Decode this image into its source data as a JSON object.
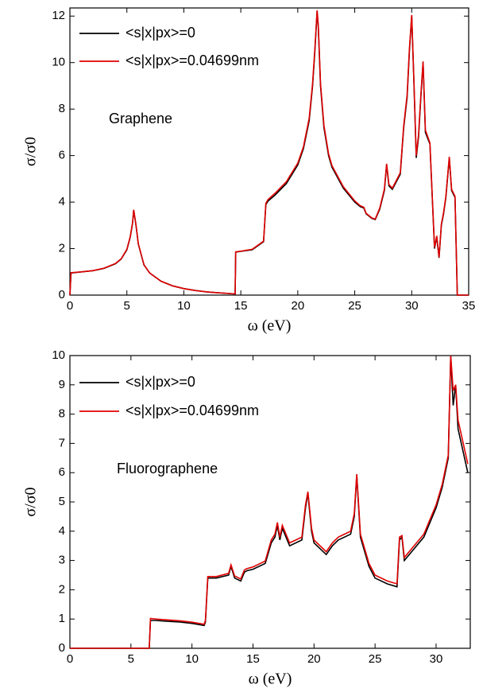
{
  "chart_data": [
    {
      "type": "line",
      "annotation": "Graphene",
      "xlabel": "ω (eV)",
      "ylabel": "σ/σ0",
      "xlim": [
        0,
        35
      ],
      "ylim": [
        0,
        12.35
      ],
      "xticks": [
        0,
        5,
        10,
        15,
        20,
        25,
        30,
        35
      ],
      "yticks": [
        0,
        2,
        4,
        6,
        8,
        10,
        12
      ],
      "legend": "upper left",
      "x": [
        0,
        0.1,
        1,
        2,
        3,
        4,
        4.5,
        5,
        5.3,
        5.5,
        5.6,
        5.8,
        6,
        6.5,
        7,
        8,
        9,
        10,
        11,
        12,
        13,
        14,
        14.5,
        14.55,
        15,
        16,
        17,
        17.2,
        17.4,
        18,
        19,
        20,
        20.5,
        21,
        21.3,
        21.5,
        21.7,
        21.8,
        22,
        22.3,
        22.7,
        23,
        24,
        25,
        25.5,
        25.8,
        26,
        26.5,
        26.8,
        27.2,
        27.6,
        27.8,
        28,
        28.3,
        29,
        29.3,
        29.6,
        29.8,
        30,
        30.2,
        30.4,
        30.6,
        30.8,
        31,
        31.2,
        31.6,
        32,
        32.2,
        32.4,
        32.6,
        32.8,
        33,
        33.3,
        33.5,
        33.8,
        34,
        34.2,
        35
      ],
      "series": [
        {
          "name": "<s|x|px>=0",
          "color": "#000000",
          "values": [
            0,
            0.95,
            1.0,
            1.05,
            1.15,
            1.35,
            1.55,
            1.95,
            2.5,
            3.1,
            3.65,
            3.0,
            2.2,
            1.3,
            0.95,
            0.6,
            0.4,
            0.28,
            0.2,
            0.14,
            0.1,
            0.07,
            0.05,
            1.85,
            1.88,
            1.95,
            2.3,
            3.9,
            4.05,
            4.3,
            4.8,
            5.6,
            6.3,
            7.5,
            9.0,
            10.5,
            12.2,
            11.5,
            9.0,
            7.2,
            6.0,
            5.5,
            4.6,
            4.0,
            3.8,
            3.75,
            3.5,
            3.3,
            3.25,
            3.7,
            4.5,
            5.6,
            4.7,
            4.55,
            5.2,
            7.2,
            8.5,
            10.5,
            12.0,
            9.0,
            5.9,
            6.8,
            8.5,
            10.0,
            7.0,
            6.5,
            2.0,
            2.5,
            1.6,
            3.0,
            3.5,
            4.2,
            5.9,
            4.5,
            4.2,
            0.0,
            0.0,
            0.0
          ]
        },
        {
          "name": "<s|x|px>=0.04699nm",
          "color": "#e00000",
          "values": [
            0,
            0.96,
            1.0,
            1.05,
            1.16,
            1.36,
            1.56,
            1.97,
            2.52,
            3.12,
            3.67,
            3.02,
            2.21,
            1.31,
            0.95,
            0.6,
            0.4,
            0.28,
            0.2,
            0.14,
            0.1,
            0.07,
            0.05,
            1.86,
            1.89,
            1.97,
            2.32,
            3.95,
            4.12,
            4.38,
            4.88,
            5.68,
            6.38,
            7.6,
            9.1,
            10.6,
            12.25,
            11.6,
            9.1,
            7.3,
            6.08,
            5.57,
            4.66,
            4.05,
            3.84,
            3.78,
            3.52,
            3.32,
            3.27,
            3.75,
            4.56,
            5.65,
            4.76,
            4.6,
            5.26,
            7.28,
            8.6,
            10.6,
            12.05,
            9.1,
            6.0,
            6.9,
            8.6,
            10.05,
            7.1,
            6.55,
            2.05,
            2.55,
            1.62,
            3.05,
            3.55,
            4.25,
            5.95,
            4.55,
            4.25,
            0.0,
            0.0,
            0.0
          ]
        }
      ]
    },
    {
      "type": "line",
      "annotation": "Fluorographene",
      "xlabel": "ω (eV)",
      "ylabel": "σ/σ0",
      "xlim": [
        0,
        32.8
      ],
      "ylim": [
        0,
        10
      ],
      "xticks": [
        0,
        5,
        10,
        15,
        20,
        25,
        30
      ],
      "yticks": [
        0,
        1,
        2,
        3,
        4,
        5,
        6,
        7,
        8,
        9,
        10
      ],
      "legend": "upper left",
      "x": [
        0,
        6.5,
        6.6,
        7,
        8,
        9,
        10,
        11,
        11.1,
        11.3,
        12,
        13,
        13.2,
        13.5,
        14,
        14.3,
        14.5,
        15,
        16,
        16.5,
        16.8,
        17,
        17.2,
        17.4,
        18,
        19,
        19.3,
        19.5,
        19.8,
        20,
        21,
        21.5,
        22,
        22.5,
        23,
        23.3,
        23.5,
        23.8,
        24.5,
        25,
        26,
        26.8,
        27,
        27.2,
        27.4,
        27.6,
        28,
        29,
        30,
        30.5,
        31,
        31.2,
        31.4,
        31.6,
        31.8,
        32.6
      ],
      "series": [
        {
          "name": "<s|x|px>=0",
          "color": "#000000",
          "values": [
            0,
            0,
            0.95,
            0.95,
            0.92,
            0.9,
            0.85,
            0.78,
            0.9,
            2.4,
            2.4,
            2.5,
            2.8,
            2.4,
            2.3,
            2.6,
            2.65,
            2.7,
            2.9,
            3.6,
            3.8,
            4.2,
            3.7,
            4.1,
            3.5,
            3.7,
            4.8,
            5.3,
            4.0,
            3.6,
            3.2,
            3.5,
            3.7,
            3.8,
            3.9,
            4.5,
            5.9,
            3.8,
            2.8,
            2.4,
            2.2,
            2.1,
            3.7,
            3.8,
            3.0,
            3.1,
            3.3,
            3.8,
            4.8,
            5.5,
            6.5,
            10.0,
            8.3,
            9.0,
            7.5,
            6.0
          ]
        },
        {
          "name": "<s|x|px>=0.04699nm",
          "color": "#e00000",
          "values": [
            0,
            0,
            1.02,
            1.0,
            0.97,
            0.94,
            0.89,
            0.82,
            0.95,
            2.45,
            2.45,
            2.56,
            2.85,
            2.47,
            2.37,
            2.68,
            2.72,
            2.78,
            2.98,
            3.7,
            3.9,
            4.3,
            3.8,
            4.2,
            3.6,
            3.8,
            4.9,
            5.35,
            4.1,
            3.7,
            3.3,
            3.6,
            3.8,
            3.9,
            4.0,
            4.6,
            5.95,
            3.9,
            2.9,
            2.5,
            2.3,
            2.2,
            3.8,
            3.85,
            3.1,
            3.2,
            3.4,
            3.9,
            4.9,
            5.6,
            6.6,
            10.0,
            8.8,
            9.0,
            7.8,
            6.3
          ]
        }
      ]
    }
  ]
}
